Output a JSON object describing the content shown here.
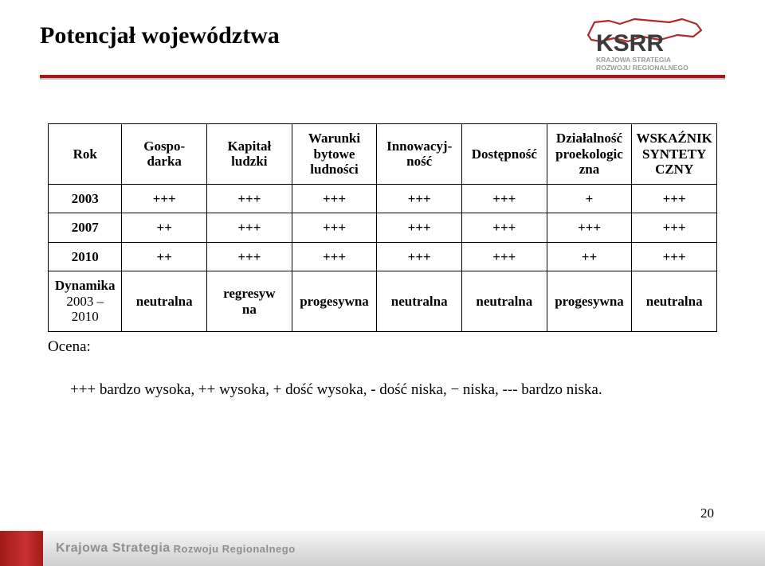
{
  "title": "Potencjał województwa",
  "logo": {
    "letters": "KSRR",
    "line1": "KRAJOWA STRATEGIA",
    "line2": "ROZWOJU REGIONALNEGO",
    "outline_color": "#b02a2a",
    "text_color": "#3b3b3b",
    "sub_color": "#9a9a9a"
  },
  "rule": {
    "red": "#a11b1b",
    "gray": "#bfbfbf"
  },
  "table": {
    "headers": [
      "Rok",
      "Gospo-\ndarka",
      "Kapitał ludzki",
      "Warunki bytowe ludności",
      "Innowacyj-\nność",
      "Dostępność",
      "Działalność proekologic\nzna",
      "WSKAŹNIK SYNTETY\nCZNY"
    ],
    "rows": [
      {
        "year": "2003",
        "cells": [
          "+++",
          "+++",
          "+++",
          "+++",
          "+++",
          "+",
          "+++"
        ]
      },
      {
        "year": "2007",
        "cells": [
          "++",
          "+++",
          "+++",
          "+++",
          "+++",
          "+++",
          "+++"
        ]
      },
      {
        "year": "2010",
        "cells": [
          "++",
          "+++",
          "+++",
          "+++",
          "+++",
          "++",
          "+++"
        ]
      }
    ],
    "dynamics": {
      "label_l1": "Dynamika",
      "label_l2": "2003 – 2010",
      "cells": [
        "neutralna",
        "regresyw\nna",
        "progesywna",
        "neutralna",
        "neutralna",
        "progesywna",
        "neutralna"
      ]
    }
  },
  "ocena_label": "Ocena:",
  "legend": "+++ bardzo wysoka, ++ wysoka, + dość wysoka, - dość niska, − niska, --- bardzo niska.",
  "page_number": "20",
  "footer": {
    "krajowa": "Krajowa Strategia",
    "rozwoju": "Rozwoju Regionalnego"
  }
}
